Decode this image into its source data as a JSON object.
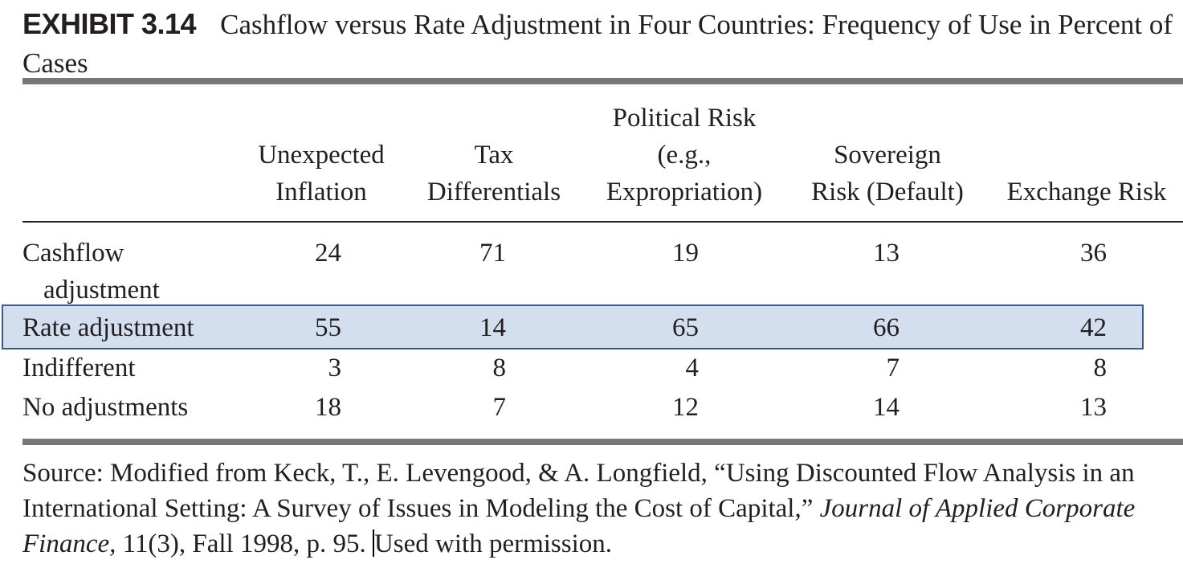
{
  "exhibit": {
    "label": "EXHIBIT 3.14",
    "title": "Cashflow versus Rate Adjustment in Four Countries: Frequency of Use in Percent of Cases"
  },
  "table": {
    "columns": [
      {
        "line1": "",
        "line2": "Unexpected",
        "line3": "Inflation"
      },
      {
        "line1": "",
        "line2": "Tax",
        "line3": "Differentials"
      },
      {
        "line1": "Political Risk",
        "line2": "(e.g.,",
        "line3": "Expropriation)"
      },
      {
        "line1": "",
        "line2": "Sovereign",
        "line3": "Risk (Default)"
      },
      {
        "line1": "",
        "line2": "",
        "line3": "Exchange Risk"
      }
    ],
    "rows": [
      {
        "label_line1": "Cashflow",
        "label_line2": "adjustment",
        "values": [
          "24",
          "71",
          "19",
          "13",
          "36"
        ]
      },
      {
        "label_line1": "Rate adjustment",
        "label_line2": "",
        "values": [
          "55",
          "14",
          "65",
          "66",
          "42"
        ]
      },
      {
        "label_line1": "Indifferent",
        "label_line2": "",
        "values": [
          "3",
          "8",
          "4",
          "7",
          "8"
        ]
      },
      {
        "label_line1": "No adjustments",
        "label_line2": "",
        "values": [
          "18",
          "7",
          "12",
          "14",
          "13"
        ]
      }
    ],
    "highlighted_row": "Rate adjustment"
  },
  "source": {
    "text_part1": "Source: Modified from Keck, T.,  E. Levengood, & A. Longfield, “Using Discounted Flow Analysis in an International Setting: A Survey of Issues in Modeling the Cost of Capital,”",
    "journal": "Journal of Applied Corporate Finance,",
    "text_part2": " 11(3), Fall 1998, p. 95. ",
    "text_part3": "Used with permission."
  },
  "colors": {
    "highlight_fill": "#d3deef",
    "highlight_border": "#3c5b84",
    "rule_gray": "#777777"
  }
}
